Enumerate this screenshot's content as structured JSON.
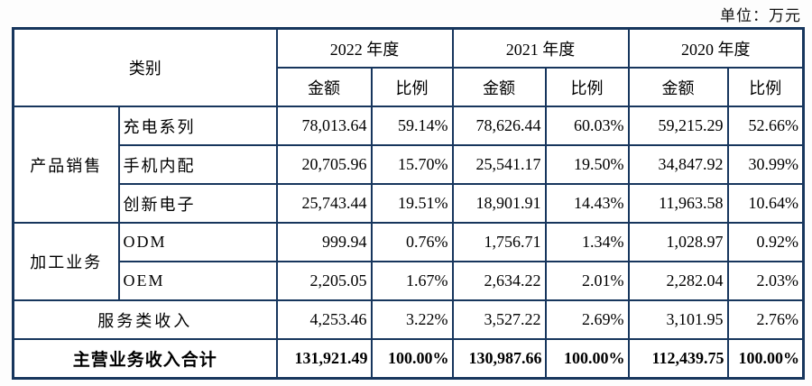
{
  "unit_label": "单位：万元",
  "colors": {
    "border": "#17365D",
    "text": "#000000",
    "background": "#ffffff"
  },
  "table": {
    "category_header": "类别",
    "year_headers": [
      "2022 年度",
      "2021 年度",
      "2020 年度"
    ],
    "sub_headers": {
      "amount": "金额",
      "ratio": "比例"
    },
    "groups": [
      {
        "name": "产品销售",
        "rows": [
          {
            "label": "充电系列",
            "values": [
              "78,013.64",
              "59.14%",
              "78,626.44",
              "60.03%",
              "59,215.29",
              "52.66%"
            ]
          },
          {
            "label": "手机内配",
            "values": [
              "20,705.96",
              "15.70%",
              "25,541.17",
              "19.50%",
              "34,847.92",
              "30.99%"
            ]
          },
          {
            "label": "创新电子",
            "values": [
              "25,743.44",
              "19.51%",
              "18,901.91",
              "14.43%",
              "11,963.58",
              "10.64%"
            ]
          }
        ]
      },
      {
        "name": "加工业务",
        "rows": [
          {
            "label": "ODM",
            "values": [
              "999.94",
              "0.76%",
              "1,756.71",
              "1.34%",
              "1,028.97",
              "0.92%"
            ]
          },
          {
            "label": "OEM",
            "values": [
              "2,205.05",
              "1.67%",
              "2,634.22",
              "2.01%",
              "2,282.04",
              "2.03%"
            ]
          }
        ]
      }
    ],
    "service_row": {
      "label": "服务类收入",
      "values": [
        "4,253.46",
        "3.22%",
        "3,527.22",
        "2.69%",
        "3,101.95",
        "2.76%"
      ]
    },
    "total_row": {
      "label": "主营业务收入合计",
      "values": [
        "131,921.49",
        "100.00%",
        "130,987.66",
        "100.00%",
        "112,439.75",
        "100.00%"
      ]
    }
  }
}
